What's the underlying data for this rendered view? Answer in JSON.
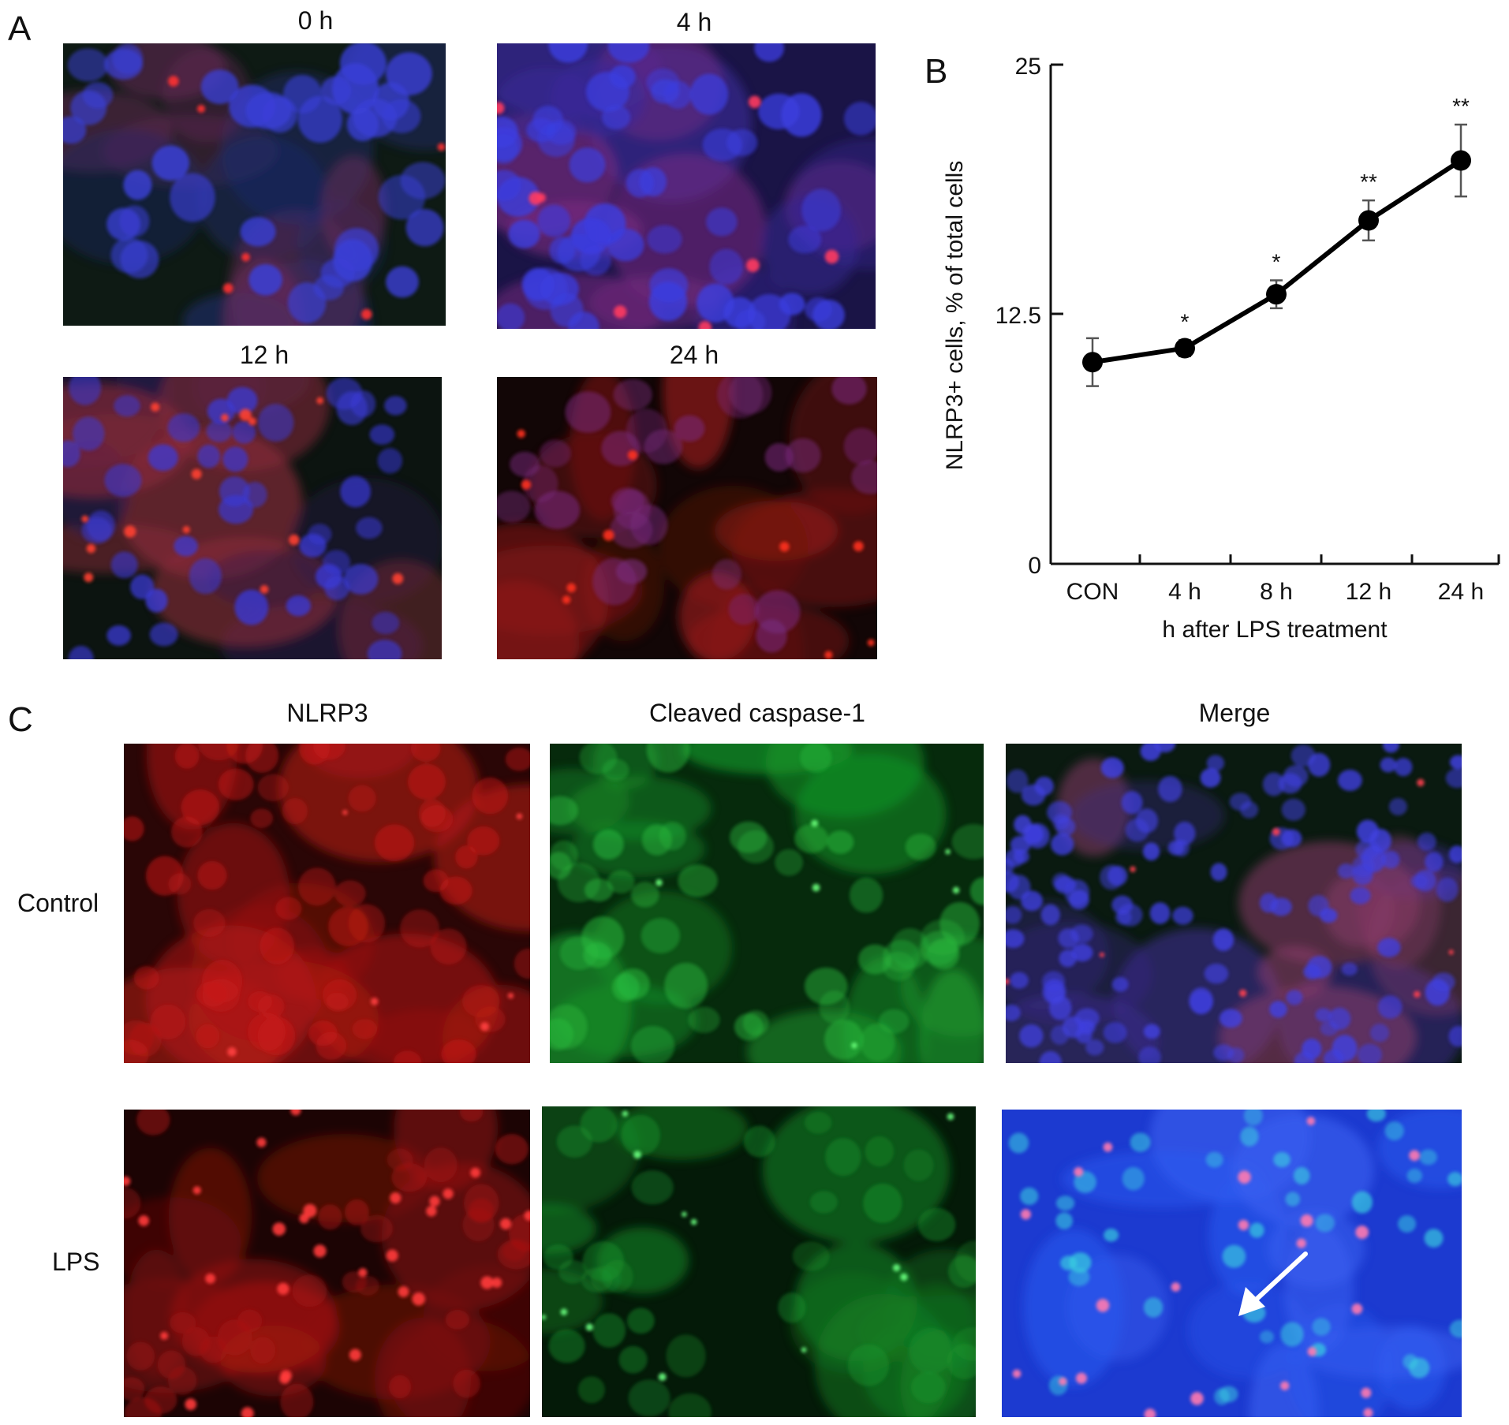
{
  "panels": {
    "a": {
      "letter": "A",
      "images": [
        {
          "caption": "0 h",
          "palette": "blue-red"
        },
        {
          "caption": "4 h",
          "palette": "blue-magenta"
        },
        {
          "caption": "12 h",
          "palette": "blue-red-dark"
        },
        {
          "caption": "24 h",
          "palette": "red"
        }
      ]
    },
    "b": {
      "letter": "B"
    },
    "c": {
      "letter": "C",
      "columns": [
        "NLRP3",
        "Cleaved caspase-1",
        "Merge"
      ],
      "rows": [
        "Control",
        "LPS"
      ]
    }
  },
  "chart_data": {
    "type": "line",
    "categories": [
      "CON",
      "4 h",
      "8 h",
      "12 h",
      "24 h"
    ],
    "values": [
      10.1,
      10.8,
      13.5,
      17.2,
      20.2
    ],
    "error": [
      1.2,
      0.4,
      0.7,
      1.0,
      1.8
    ],
    "annotations": [
      "",
      "*",
      "*",
      "**",
      "**"
    ],
    "xlabel": "h after LPS treatment",
    "ylabel": "NLRP3+ cells, % of total cells",
    "ylim": [
      0,
      25
    ],
    "yticks": [
      "0",
      "12.5",
      "25"
    ],
    "grid": false,
    "color": "#000000"
  },
  "colors": {
    "blue_nuclei": "#3a3ae0",
    "red_stain": "#d0201c",
    "green_stain": "#27c23d",
    "background_dark": "#0a120c"
  }
}
